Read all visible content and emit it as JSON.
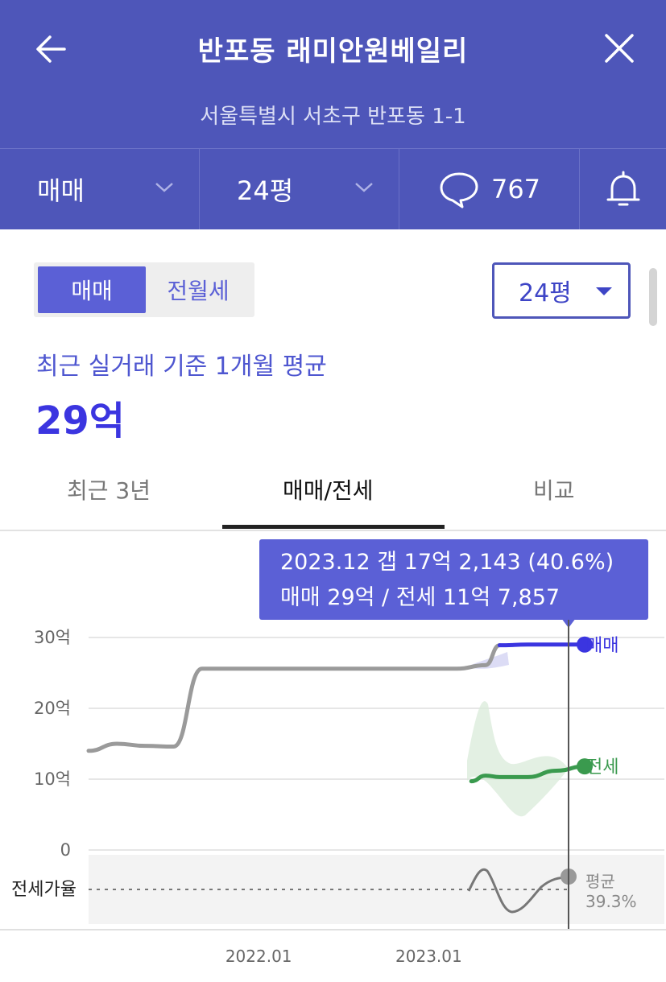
{
  "header": {
    "title": "반포동 래미안원베일리",
    "subtitle": "서울특별시 서초구 반포동 1-1",
    "tabbar": {
      "deal_type": "매매",
      "size": "24평",
      "comment_count": "767"
    }
  },
  "toggle": {
    "active": "매매",
    "inactive": "전월세"
  },
  "size_select": {
    "value": "24평"
  },
  "summary": {
    "label": "최근 실거래 기준 1개월 평균",
    "price": "29억"
  },
  "subtabs": [
    "최근 3년",
    "매매/전세",
    "비교"
  ],
  "tooltip": {
    "line1": "2023.12  갭 17억 2,143 (40.6%)",
    "line2": "매매 29억 / 전세 11억 7,857"
  },
  "colors": {
    "header_bg": "#4e56b9",
    "accent": "#5b60d6",
    "sale_line": "#3b35e0",
    "jeonse_line": "#3a9a4e",
    "history_line": "#9a9a9a"
  },
  "icons": [
    "back-arrow-icon",
    "close-icon",
    "chevron-down-icon",
    "chat-bubble-icon",
    "bell-icon",
    "caret-down-icon"
  ],
  "chart_data": {
    "type": "line",
    "yticks": [
      "30억",
      "20억",
      "10억",
      "0"
    ],
    "xticks": [
      "2022.01",
      "2023.01"
    ],
    "ylim": [
      0,
      30
    ],
    "series": [
      {
        "name": "매매",
        "x": [
          "2021.01",
          "2021.03",
          "2021.05",
          "2021.07",
          "2021.09",
          "2021.11",
          "2022.01",
          "2022.06",
          "2022.12",
          "2023.01",
          "2023.03",
          "2023.05",
          "2023.06",
          "2023.08",
          "2023.10",
          "2023.12"
        ],
        "values": [
          14.0,
          15.0,
          14.7,
          14.6,
          25.6,
          25.6,
          25.6,
          25.6,
          25.6,
          25.6,
          25.6,
          26.1,
          28.9,
          29.0,
          29.0,
          29.0
        ]
      },
      {
        "name": "전세",
        "x": [
          "2023.04",
          "2023.05",
          "2023.06",
          "2023.08",
          "2023.10",
          "2023.12"
        ],
        "values": [
          9.7,
          10.5,
          10.3,
          10.3,
          11.2,
          11.8
        ]
      }
    ],
    "jeonse_ratio": {
      "label": "전세가율",
      "avg_label": "평균",
      "avg_value": "39.3%"
    },
    "legend_labels": {
      "sale": "매매",
      "jeonse": "전세"
    }
  }
}
